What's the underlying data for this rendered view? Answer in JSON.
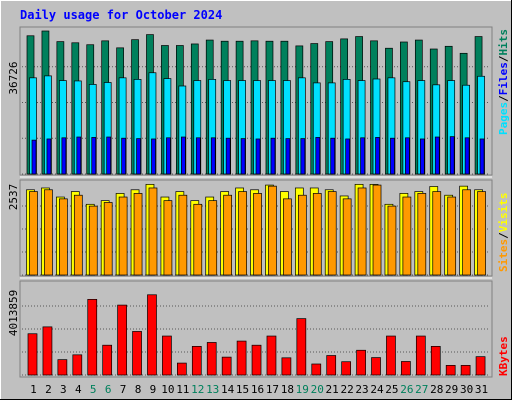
{
  "chart_data": [
    {
      "panel": "hits-files-pages",
      "type": "bar",
      "title": "Daily usage for October 2024",
      "categories": [
        "1",
        "2",
        "3",
        "4",
        "5",
        "6",
        "7",
        "8",
        "9",
        "10",
        "11",
        "12",
        "13",
        "14",
        "15",
        "16",
        "17",
        "18",
        "19",
        "20",
        "21",
        "22",
        "23",
        "24",
        "25",
        "26",
        "27",
        "28",
        "29",
        "30",
        "31"
      ],
      "weekend_days": [
        "5",
        "6",
        "12",
        "13",
        "19",
        "20",
        "26",
        "27"
      ],
      "ymax_label": "36726",
      "ylim": [
        0,
        36726
      ],
      "legend": [
        "Pages",
        "Files",
        "Hits"
      ],
      "legend_separator": "/",
      "series": [
        {
          "name": "Hits",
          "color": "#00805c",
          "values": [
            35500,
            36726,
            34000,
            33700,
            33200,
            34200,
            32400,
            34500,
            35800,
            33000,
            33000,
            33400,
            34400,
            34100,
            34100,
            34200,
            34100,
            34100,
            32900,
            33500,
            34000,
            34700,
            35300,
            34200,
            32300,
            33900,
            34400,
            32100,
            32800,
            31000,
            35300
          ]
        },
        {
          "name": "Files",
          "color": "#00e0ff",
          "values": [
            24700,
            25200,
            24000,
            23900,
            23000,
            23500,
            24700,
            24300,
            26000,
            24500,
            22600,
            24000,
            24300,
            24000,
            24000,
            24000,
            24000,
            24000,
            24700,
            23400,
            23400,
            24300,
            24000,
            24400,
            24700,
            23700,
            24000,
            22900,
            24000,
            22800,
            25100
          ]
        },
        {
          "name": "Pages",
          "color": "#0000ff",
          "values": [
            8700,
            9000,
            9300,
            9500,
            9400,
            9500,
            9200,
            9100,
            9000,
            9300,
            9500,
            9300,
            9300,
            9200,
            9100,
            9000,
            9200,
            9100,
            9100,
            9400,
            9200,
            9000,
            9300,
            9400,
            9200,
            9300,
            9000,
            9500,
            9600,
            9300,
            9000
          ]
        }
      ]
    },
    {
      "panel": "visits-sites",
      "type": "bar",
      "ymax_label": "2537",
      "ylim": [
        0,
        2537
      ],
      "legend": [
        "Sites",
        "Visits"
      ],
      "legend_separator": "/",
      "series": [
        {
          "name": "Visits",
          "color": "#ffff00",
          "values": [
            2350,
            2400,
            2150,
            2300,
            1950,
            2050,
            2250,
            2350,
            2500,
            2150,
            2300,
            2050,
            2150,
            2300,
            2400,
            2350,
            2480,
            2300,
            2400,
            2400,
            2350,
            2180,
            2500,
            2500,
            1950,
            2250,
            2300,
            2440,
            2200,
            2450,
            2350
          ]
        },
        {
          "name": "Sites",
          "color": "#ff9900",
          "values": [
            2300,
            2350,
            2100,
            2200,
            1900,
            2000,
            2150,
            2250,
            2400,
            2050,
            2200,
            1950,
            2050,
            2200,
            2300,
            2250,
            2450,
            2100,
            2200,
            2250,
            2300,
            2100,
            2400,
            2480,
            1900,
            2150,
            2250,
            2300,
            2150,
            2350,
            2300
          ]
        }
      ]
    },
    {
      "panel": "kbytes",
      "type": "bar",
      "ymax_label": "4013859",
      "ylim": [
        0,
        4013859
      ],
      "legend": [
        "KBytes"
      ],
      "series": [
        {
          "name": "KBytes",
          "color": "#ff0000",
          "values": [
            1800000,
            2100000,
            670000,
            880000,
            3300000,
            1300000,
            3050000,
            1900000,
            3500000,
            1700000,
            520000,
            1250000,
            1420000,
            780000,
            1480000,
            1300000,
            1700000,
            750000,
            2460000,
            480000,
            850000,
            580000,
            1080000,
            760000,
            1700000,
            590000,
            1700000,
            1250000,
            420000,
            420000,
            800000
          ]
        }
      ]
    }
  ],
  "colors": {
    "background": "#c0c0c0",
    "panel": "#c0c0c0",
    "grid": "#000000",
    "title": "#0000ff",
    "weekday_label": "#000000",
    "weekend_label": "#00805c"
  }
}
